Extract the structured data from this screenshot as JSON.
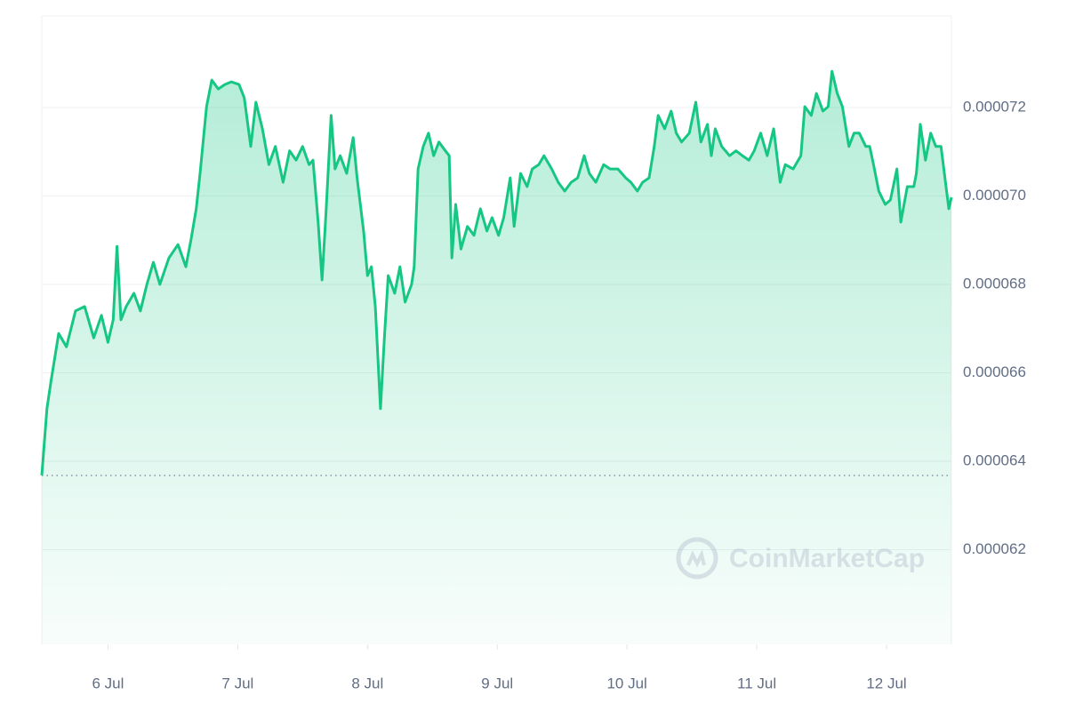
{
  "chart_data": {
    "type": "area",
    "color": "#16c784",
    "watermark": "CoinMarketCap",
    "grid": true,
    "reference_line": 6.368e-05,
    "xlim": [
      5.49,
      12.5
    ],
    "xticks": [
      {
        "value": 6,
        "label": "6 Jul"
      },
      {
        "value": 7,
        "label": "7 Jul"
      },
      {
        "value": 8,
        "label": "8 Jul"
      },
      {
        "value": 9,
        "label": "9 Jul"
      },
      {
        "value": 10,
        "label": "10 Jul"
      },
      {
        "value": 11,
        "label": "11 Jul"
      },
      {
        "value": 12,
        "label": "12 Jul"
      }
    ],
    "ylim": [
      5.986e-05,
      7.407e-05
    ],
    "yticks": [
      6.2e-05,
      6.4e-05,
      6.6e-05,
      6.8e-05,
      {
        "value": 7e-05,
        "label": "0.000070"
      },
      7.2e-05
    ],
    "x": [
      5.49,
      5.53,
      5.56,
      5.62,
      5.68,
      5.75,
      5.82,
      5.89,
      5.95,
      6.0,
      6.04,
      6.07,
      6.1,
      6.14,
      6.2,
      6.25,
      6.3,
      6.35,
      6.4,
      6.47,
      6.54,
      6.6,
      6.64,
      6.68,
      6.71,
      6.76,
      6.8,
      6.85,
      6.9,
      6.95,
      7.01,
      7.05,
      7.1,
      7.14,
      7.19,
      7.24,
      7.29,
      7.35,
      7.4,
      7.45,
      7.5,
      7.55,
      7.58,
      7.62,
      7.65,
      7.68,
      7.72,
      7.75,
      7.79,
      7.84,
      7.89,
      7.92,
      7.97,
      8.0,
      8.03,
      8.06,
      8.1,
      8.13,
      8.16,
      8.21,
      8.25,
      8.29,
      8.34,
      8.36,
      8.39,
      8.43,
      8.47,
      8.51,
      8.55,
      8.6,
      8.63,
      8.65,
      8.68,
      8.72,
      8.77,
      8.82,
      8.87,
      8.92,
      8.96,
      9.01,
      9.05,
      9.1,
      9.13,
      9.18,
      9.23,
      9.27,
      9.32,
      9.36,
      9.42,
      9.47,
      9.52,
      9.57,
      9.62,
      9.67,
      9.71,
      9.76,
      9.82,
      9.87,
      9.93,
      9.99,
      10.03,
      10.08,
      10.12,
      10.17,
      10.21,
      10.24,
      10.29,
      10.34,
      10.38,
      10.42,
      10.48,
      10.53,
      10.57,
      10.62,
      10.65,
      10.68,
      10.73,
      10.79,
      10.84,
      10.89,
      10.94,
      10.98,
      11.03,
      11.08,
      11.13,
      11.18,
      11.22,
      11.28,
      11.34,
      11.37,
      11.42,
      11.46,
      11.51,
      11.55,
      11.58,
      11.62,
      11.66,
      11.71,
      11.75,
      11.79,
      11.84,
      11.87,
      11.9,
      11.94,
      11.99,
      12.03,
      12.08,
      12.11,
      12.16,
      12.21,
      12.23,
      12.26,
      12.3,
      12.34,
      12.38,
      12.42,
      12.45,
      12.48,
      12.5
    ],
    "values": [
      6.368e-05,
      6.519e-05,
      6.579e-05,
      6.689e-05,
      6.659e-05,
      6.74e-05,
      6.75e-05,
      6.679e-05,
      6.73e-05,
      6.669e-05,
      6.72e-05,
      6.886e-05,
      6.72e-05,
      6.75e-05,
      6.78e-05,
      6.74e-05,
      6.8e-05,
      6.85e-05,
      6.8e-05,
      6.86e-05,
      6.89e-05,
      6.84e-05,
      6.901e-05,
      6.971e-05,
      7.051e-05,
      7.202e-05,
      7.262e-05,
      7.242e-05,
      7.252e-05,
      7.258e-05,
      7.252e-05,
      7.222e-05,
      7.112e-05,
      7.212e-05,
      7.152e-05,
      7.071e-05,
      7.112e-05,
      7.031e-05,
      7.102e-05,
      7.081e-05,
      7.112e-05,
      7.071e-05,
      7.081e-05,
      6.941e-05,
      6.81e-05,
      6.961e-05,
      7.182e-05,
      7.061e-05,
      7.091e-05,
      7.051e-05,
      7.132e-05,
      7.041e-05,
      6.921e-05,
      6.82e-05,
      6.84e-05,
      6.75e-05,
      6.519e-05,
      6.679e-05,
      6.82e-05,
      6.78e-05,
      6.84e-05,
      6.76e-05,
      6.8e-05,
      6.84e-05,
      7.061e-05,
      7.112e-05,
      7.142e-05,
      7.091e-05,
      7.122e-05,
      7.102e-05,
      7.091e-05,
      6.86e-05,
      6.981e-05,
      6.88e-05,
      6.931e-05,
      6.911e-05,
      6.971e-05,
      6.921e-05,
      6.951e-05,
      6.911e-05,
      6.951e-05,
      7.041e-05,
      6.931e-05,
      7.051e-05,
      7.021e-05,
      7.061e-05,
      7.071e-05,
      7.091e-05,
      7.061e-05,
      7.031e-05,
      7.011e-05,
      7.031e-05,
      7.041e-05,
      7.091e-05,
      7.051e-05,
      7.031e-05,
      7.071e-05,
      7.061e-05,
      7.061e-05,
      7.041e-05,
      7.031e-05,
      7.011e-05,
      7.031e-05,
      7.041e-05,
      7.112e-05,
      7.182e-05,
      7.152e-05,
      7.192e-05,
      7.142e-05,
      7.122e-05,
      7.142e-05,
      7.212e-05,
      7.122e-05,
      7.162e-05,
      7.091e-05,
      7.152e-05,
      7.112e-05,
      7.091e-05,
      7.102e-05,
      7.091e-05,
      7.081e-05,
      7.102e-05,
      7.142e-05,
      7.091e-05,
      7.152e-05,
      7.031e-05,
      7.071e-05,
      7.061e-05,
      7.091e-05,
      7.202e-05,
      7.182e-05,
      7.232e-05,
      7.192e-05,
      7.202e-05,
      7.282e-05,
      7.232e-05,
      7.202e-05,
      7.112e-05,
      7.142e-05,
      7.142e-05,
      7.112e-05,
      7.112e-05,
      7.071e-05,
      7.011e-05,
      6.981e-05,
      6.991e-05,
      7.061e-05,
      6.941e-05,
      7.021e-05,
      7.021e-05,
      7.051e-05,
      7.162e-05,
      7.081e-05,
      7.142e-05,
      7.112e-05,
      7.112e-05,
      7.041e-05,
      6.971e-05,
      6.997e-05
    ]
  }
}
